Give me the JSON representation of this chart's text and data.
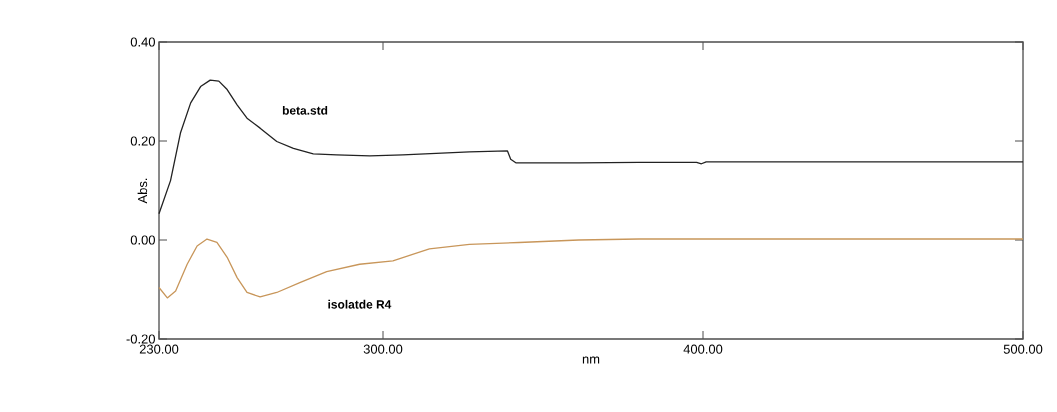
{
  "chart_data": {
    "type": "line",
    "xlabel": "nm",
    "ylabel": "Abs.",
    "xlim": [
      230,
      500
    ],
    "ylim": [
      -0.2,
      0.4
    ],
    "xticks": [
      {
        "value": 230,
        "label": "230.00"
      },
      {
        "value": 300,
        "label": "300.00"
      },
      {
        "value": 400,
        "label": "400.00"
      },
      {
        "value": 500,
        "label": "500.00"
      }
    ],
    "yticks": [
      {
        "value": -0.2,
        "label": "-0.20"
      },
      {
        "value": 0,
        "label": "0.00"
      },
      {
        "value": 0.2,
        "label": "0.20"
      },
      {
        "value": 0.4,
        "label": "0.40"
      }
    ],
    "grid": false,
    "legend": false,
    "marker": "none",
    "line_style": "solid",
    "series": [
      {
        "name": "beta.std",
        "color": "#222222",
        "x": [
          230,
          233.6,
          236.7,
          239.9,
          243,
          246,
          248.7,
          251.3,
          254.4,
          257.5,
          261.6,
          266.8,
          272,
          278.2,
          285.5,
          295.9,
          306.2,
          316.6,
          327,
          338.9,
          339.9,
          341.5,
          361.2,
          380,
          398,
          399.5,
          401,
          420,
          460,
          500
        ],
        "values": [
          0.053,
          0.12,
          0.216,
          0.277,
          0.31,
          0.323,
          0.321,
          0.304,
          0.273,
          0.246,
          0.226,
          0.199,
          0.185,
          0.174,
          0.172,
          0.17,
          0.172,
          0.175,
          0.178,
          0.18,
          0.163,
          0.156,
          0.156,
          0.157,
          0.157,
          0.154,
          0.158,
          0.158,
          0.158,
          0.158
        ]
      },
      {
        "name": "isolatde R4",
        "color": "#c8965a",
        "x": [
          230,
          232.6,
          235.2,
          238.8,
          241.9,
          245,
          248.1,
          251.3,
          254.4,
          257.5,
          261.6,
          266.8,
          274,
          282.4,
          292.7,
          303.1,
          314.5,
          327,
          342.5,
          361.2,
          380,
          420,
          460,
          500
        ],
        "values": [
          -0.096,
          -0.117,
          -0.103,
          -0.049,
          -0.012,
          0.002,
          -0.005,
          -0.035,
          -0.076,
          -0.106,
          -0.115,
          -0.106,
          -0.086,
          -0.064,
          -0.049,
          -0.042,
          -0.018,
          -0.009,
          -0.005,
          0,
          0.002,
          0.002,
          0.002,
          0.002
        ]
      }
    ]
  }
}
